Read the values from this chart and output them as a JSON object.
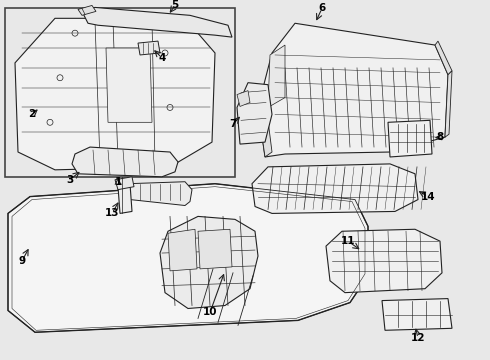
{
  "bg_color": "#e8e8e8",
  "part_bg": "#ffffff",
  "line_color": "#222222",
  "box_border": "#555555",
  "fig_w": 4.9,
  "fig_h": 3.6,
  "dpi": 100
}
